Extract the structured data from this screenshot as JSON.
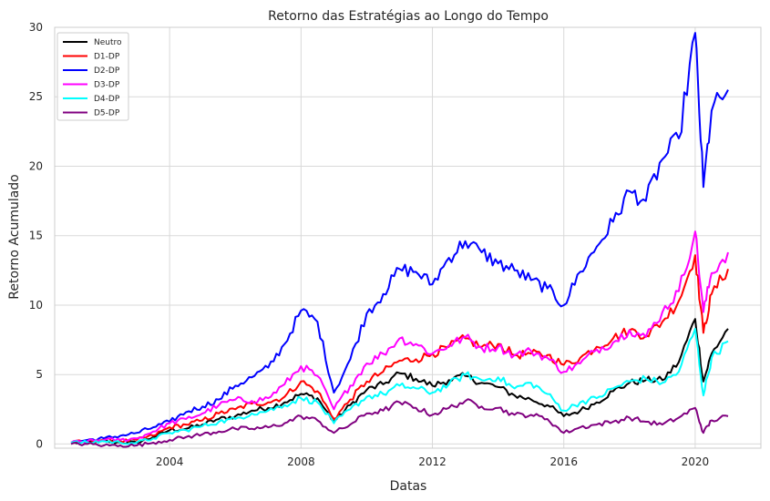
{
  "chart_data": {
    "type": "line",
    "title": "Retorno das Estratégias ao Longo do Tempo",
    "xlabel": "Datas",
    "ylabel": "Retorno Acumulado",
    "xlim": [
      2000.5,
      2022.0
    ],
    "ylim": [
      -0.3,
      30
    ],
    "x_ticks": [
      2004,
      2008,
      2012,
      2016,
      2020
    ],
    "x_tick_labels": [
      "2004",
      "2008",
      "2012",
      "2016",
      "2020"
    ],
    "y_ticks": [
      0,
      5,
      10,
      15,
      20,
      25,
      30
    ],
    "y_tick_labels": [
      "0",
      "5",
      "10",
      "15",
      "20",
      "25",
      "30"
    ],
    "grid": true,
    "legend_position": "top-left",
    "x": [
      2001.0,
      2001.5,
      2002.0,
      2002.5,
      2003.0,
      2003.5,
      2004.0,
      2004.5,
      2005.0,
      2005.5,
      2006.0,
      2006.5,
      2007.0,
      2007.5,
      2008.0,
      2008.5,
      2009.0,
      2009.5,
      2010.0,
      2010.5,
      2011.0,
      2011.5,
      2012.0,
      2012.5,
      2013.0,
      2013.5,
      2014.0,
      2014.5,
      2015.0,
      2015.5,
      2016.0,
      2016.5,
      2017.0,
      2017.5,
      2018.0,
      2018.5,
      2019.0,
      2019.5,
      2020.0,
      2020.25,
      2020.5,
      2021.0
    ],
    "series": [
      {
        "name": "Neutro",
        "color": "#000000",
        "values": [
          0.1,
          0.1,
          0.2,
          0.1,
          0.1,
          0.5,
          1.0,
          1.1,
          1.4,
          1.8,
          2.0,
          2.4,
          2.6,
          3.0,
          3.6,
          3.3,
          1.6,
          2.8,
          3.9,
          4.3,
          5.1,
          4.7,
          4.2,
          4.6,
          4.9,
          4.4,
          4.1,
          3.5,
          3.2,
          2.8,
          2.0,
          2.4,
          3.0,
          3.8,
          4.4,
          4.6,
          4.6,
          5.9,
          9.0,
          4.5,
          6.5,
          8.3
        ]
      },
      {
        "name": "D1-DP",
        "color": "#ff0000",
        "values": [
          0.1,
          0.2,
          0.3,
          0.2,
          0.3,
          0.6,
          1.2,
          1.4,
          1.7,
          2.2,
          2.5,
          2.9,
          3.0,
          3.4,
          4.5,
          3.8,
          1.8,
          3.2,
          4.5,
          5.2,
          6.0,
          6.1,
          6.5,
          7.0,
          7.6,
          7.0,
          7.2,
          6.4,
          6.5,
          6.4,
          5.7,
          6.2,
          7.0,
          7.6,
          8.2,
          7.8,
          8.8,
          10.3,
          13.6,
          8.0,
          10.8,
          12.6
        ]
      },
      {
        "name": "D2-DP",
        "color": "#0000ff",
        "values": [
          0.1,
          0.3,
          0.4,
          0.6,
          0.8,
          1.2,
          1.6,
          2.3,
          2.7,
          3.2,
          4.2,
          4.8,
          5.5,
          7.2,
          9.6,
          8.8,
          3.7,
          6.1,
          9.4,
          10.8,
          12.6,
          12.4,
          11.5,
          13.4,
          14.6,
          13.8,
          13.0,
          12.5,
          11.8,
          11.2,
          10.0,
          12.4,
          14.2,
          16.0,
          18.2,
          17.5,
          20.5,
          22.0,
          29.6,
          18.5,
          24.0,
          25.5
        ]
      },
      {
        "name": "D3-DP",
        "color": "#ff00ff",
        "values": [
          0.1,
          0.2,
          0.3,
          0.3,
          0.4,
          0.9,
          1.5,
          1.8,
          2.2,
          2.8,
          3.2,
          3.1,
          3.3,
          4.3,
          5.6,
          4.9,
          2.5,
          4.2,
          5.8,
          6.5,
          7.6,
          7.2,
          6.5,
          7.1,
          7.7,
          6.9,
          7.0,
          6.4,
          6.7,
          6.2,
          5.2,
          5.8,
          6.8,
          7.3,
          8.2,
          7.7,
          9.5,
          11.0,
          15.3,
          9.5,
          12.3,
          13.8
        ]
      },
      {
        "name": "D4-DP",
        "color": "#00ffff",
        "values": [
          0.1,
          0.1,
          0.2,
          0.1,
          0.1,
          0.4,
          0.8,
          1.0,
          1.3,
          1.6,
          1.8,
          2.2,
          2.4,
          2.8,
          3.3,
          3.0,
          1.5,
          2.5,
          3.4,
          3.6,
          4.2,
          4.0,
          3.7,
          4.3,
          5.0,
          4.6,
          4.8,
          4.0,
          4.4,
          3.6,
          2.4,
          3.0,
          3.3,
          4.0,
          4.5,
          4.7,
          4.4,
          5.2,
          8.3,
          3.5,
          6.2,
          7.4
        ]
      },
      {
        "name": "D5-DP",
        "color": "#800080",
        "values": [
          0.0,
          0.0,
          -0.1,
          -0.1,
          -0.1,
          0.1,
          0.3,
          0.5,
          0.7,
          0.9,
          1.1,
          1.1,
          1.2,
          1.5,
          2.0,
          1.7,
          0.8,
          1.4,
          2.2,
          2.4,
          3.0,
          2.6,
          2.1,
          2.6,
          3.1,
          2.7,
          2.6,
          2.1,
          2.1,
          1.8,
          0.8,
          1.2,
          1.4,
          1.6,
          1.9,
          1.6,
          1.4,
          1.9,
          2.6,
          0.8,
          1.7,
          2.0
        ]
      }
    ]
  }
}
